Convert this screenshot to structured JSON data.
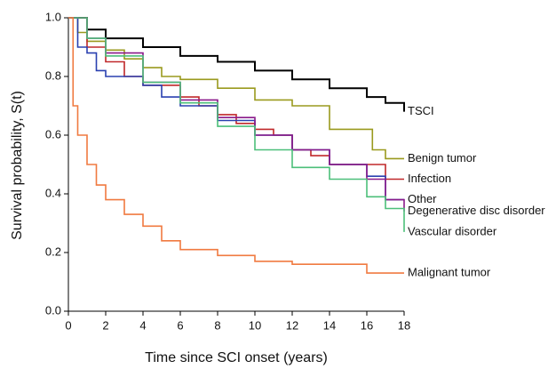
{
  "chart_data": {
    "type": "line",
    "step": true,
    "x_label": "Time since SCI onset (years)",
    "y_label": "Survival probability, S(t)",
    "xlim": [
      0,
      18
    ],
    "xticks": [
      0,
      2,
      4,
      6,
      8,
      10,
      12,
      14,
      16,
      18
    ],
    "ylim": [
      0,
      1
    ],
    "yticks": [
      {
        "value": 0,
        "label": "0.0"
      },
      0.2,
      0.4,
      0.6,
      0.8,
      {
        "value": 1,
        "label": "1.0"
      }
    ],
    "series": [
      {
        "name": "TSCI",
        "color": "#000000",
        "x": [
          0,
          1,
          2,
          4,
          6,
          8,
          10,
          12,
          14,
          16,
          17,
          18
        ],
        "values": [
          1,
          0.96,
          0.93,
          0.9,
          0.87,
          0.85,
          0.82,
          0.79,
          0.76,
          0.73,
          0.71,
          0.68
        ]
      },
      {
        "name": "Benign tumor",
        "color": "#9a9a1e",
        "x": [
          0,
          0.5,
          1,
          2,
          3,
          4,
          5,
          6,
          8,
          10,
          12,
          14,
          16.3,
          17,
          18
        ],
        "values": [
          1,
          0.95,
          0.92,
          0.89,
          0.86,
          0.83,
          0.8,
          0.79,
          0.76,
          0.72,
          0.7,
          0.62,
          0.55,
          0.52,
          0.52
        ]
      },
      {
        "name": "Infection",
        "color": "#c0282a",
        "x": [
          0,
          1,
          2,
          3,
          4,
          6,
          7,
          8,
          9,
          10,
          11,
          12,
          13,
          14,
          17,
          18
        ],
        "values": [
          1,
          0.9,
          0.85,
          0.8,
          0.77,
          0.73,
          0.7,
          0.67,
          0.64,
          0.62,
          0.6,
          0.55,
          0.53,
          0.5,
          0.45,
          0.45
        ]
      },
      {
        "name": "Other",
        "color": "#2a40b0",
        "x": [
          0,
          0.5,
          1,
          1.5,
          2,
          4,
          5,
          6,
          8,
          10,
          12,
          14,
          16,
          17,
          18
        ],
        "values": [
          1,
          0.9,
          0.88,
          0.82,
          0.8,
          0.77,
          0.73,
          0.7,
          0.65,
          0.6,
          0.55,
          0.5,
          0.46,
          0.38,
          0.38
        ]
      },
      {
        "name": "Degenerative disc disorder",
        "color": "#8a1a8a",
        "x": [
          0,
          1,
          2,
          4,
          6,
          8,
          10,
          12,
          14,
          16,
          17,
          18
        ],
        "values": [
          1,
          0.93,
          0.88,
          0.78,
          0.72,
          0.66,
          0.6,
          0.55,
          0.5,
          0.45,
          0.38,
          0.34
        ]
      },
      {
        "name": "Vascular disorder",
        "color": "#4cbf7a",
        "x": [
          0,
          1,
          2,
          4,
          6,
          8,
          10,
          12,
          14,
          16,
          17,
          18
        ],
        "values": [
          1,
          0.93,
          0.87,
          0.78,
          0.71,
          0.63,
          0.55,
          0.49,
          0.45,
          0.39,
          0.35,
          0.27
        ]
      },
      {
        "name": "Malignant tumor",
        "color": "#f07a40",
        "x": [
          0,
          0.25,
          0.5,
          1,
          1.5,
          2,
          3,
          4,
          5,
          6,
          8,
          10,
          12,
          16,
          18
        ],
        "values": [
          1,
          0.7,
          0.6,
          0.5,
          0.43,
          0.38,
          0.33,
          0.29,
          0.24,
          0.21,
          0.19,
          0.17,
          0.16,
          0.13,
          0.13
        ]
      }
    ]
  }
}
